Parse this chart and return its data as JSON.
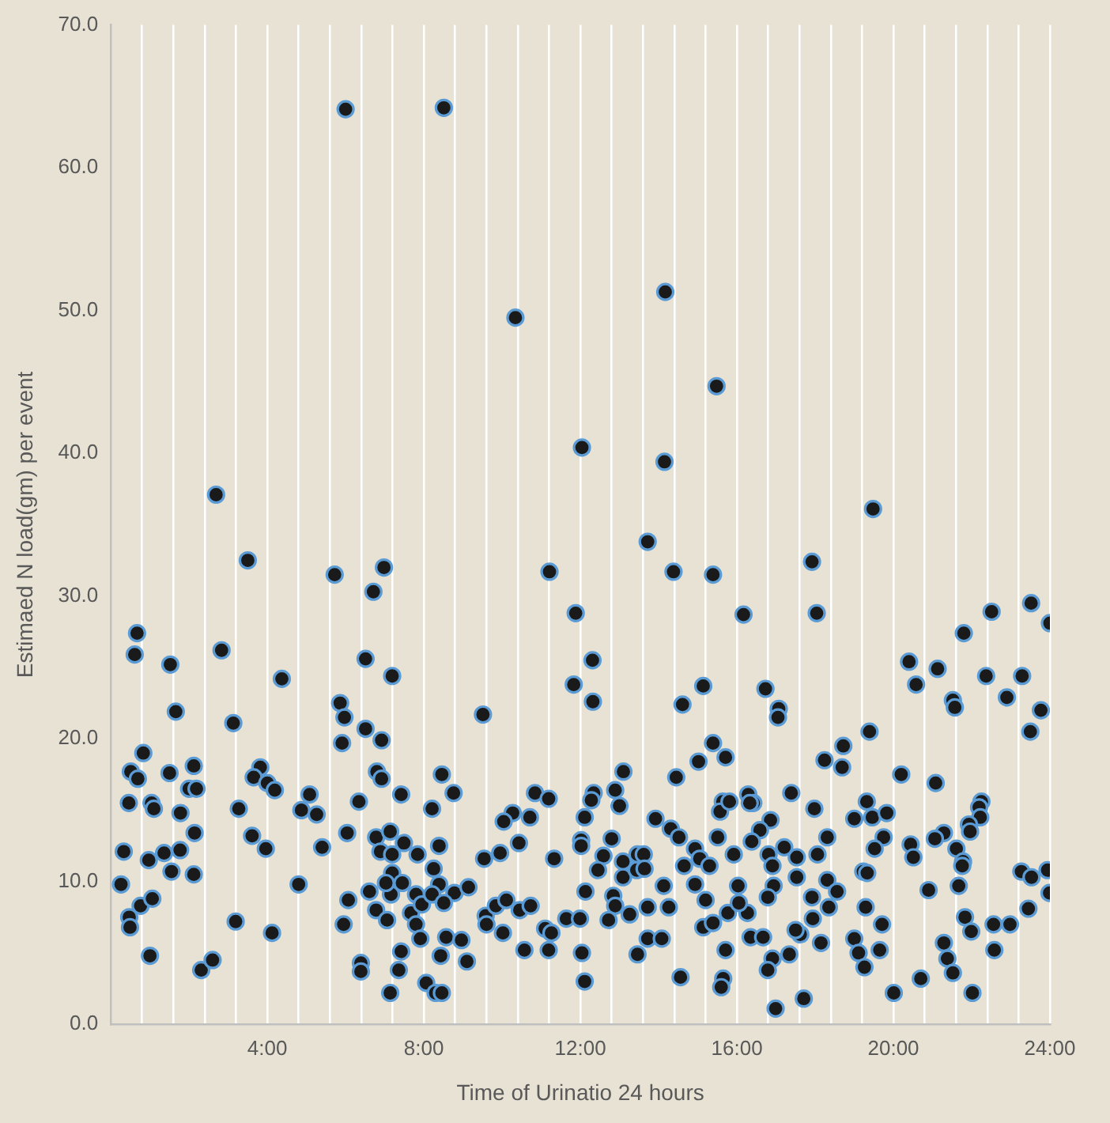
{
  "chart_data": {
    "type": "scatter",
    "xlabel": "Time of Urinatio 24 hours",
    "ylabel": "Estimaed N load(gm) per event",
    "color": "#1a1a1a",
    "marker": "circle",
    "grid": "x",
    "xlim": [
      0,
      24
    ],
    "xticks": [
      {
        "value": 0,
        "label": null
      },
      {
        "value": 0.8,
        "label": null
      },
      {
        "value": 1.6,
        "label": null
      },
      {
        "value": 2.4,
        "label": null
      },
      {
        "value": 3.2,
        "label": null
      },
      {
        "value": 4,
        "label": "4:00"
      },
      {
        "value": 4.8,
        "label": null
      },
      {
        "value": 5.6,
        "label": null
      },
      {
        "value": 6.4,
        "label": null
      },
      {
        "value": 7.2,
        "label": null
      },
      {
        "value": 8,
        "label": "8:00"
      },
      {
        "value": 8.8,
        "label": null
      },
      {
        "value": 9.6,
        "label": null
      },
      {
        "value": 10.4,
        "label": null
      },
      {
        "value": 11.2,
        "label": null
      },
      {
        "value": 12,
        "label": "12:00"
      },
      {
        "value": 12.8,
        "label": null
      },
      {
        "value": 13.6,
        "label": null
      },
      {
        "value": 14.4,
        "label": null
      },
      {
        "value": 15.2,
        "label": null
      },
      {
        "value": 16,
        "label": "16:00"
      },
      {
        "value": 16.8,
        "label": null
      },
      {
        "value": 17.6,
        "label": null
      },
      {
        "value": 18.4,
        "label": null
      },
      {
        "value": 19.2,
        "label": null
      },
      {
        "value": 20,
        "label": "20:00"
      },
      {
        "value": 20.8,
        "label": null
      },
      {
        "value": 21.6,
        "label": null
      },
      {
        "value": 22.4,
        "label": null
      },
      {
        "value": 23.2,
        "label": null
      },
      {
        "value": 24,
        "label": "24:00"
      }
    ],
    "ylim": [
      0,
      70
    ],
    "yticks": [
      {
        "value": 0,
        "label": "0.0"
      },
      {
        "value": 10,
        "label": "10.0"
      },
      {
        "value": 20,
        "label": "20.0"
      },
      {
        "value": 30,
        "label": "30.0"
      },
      {
        "value": 40,
        "label": "40.0"
      },
      {
        "value": 50,
        "label": "50.0"
      },
      {
        "value": 60,
        "label": "60.0"
      },
      {
        "value": 70,
        "label": "70.0"
      }
    ],
    "x": [
      6.0,
      2.69,
      3.5,
      5.72,
      6.98,
      6.71,
      0.67,
      0.61,
      2.83,
      1.52,
      6.51,
      7.19,
      4.37,
      1.66,
      3.13,
      5.86,
      5.97,
      5.91,
      6.51,
      6.92,
      0.83,
      0.51,
      0.69,
      1.5,
      2.12,
      2.0,
      2.19,
      0.46,
      1.04,
      1.1,
      1.78,
      3.82,
      3.65,
      4.0,
      4.19,
      3.27,
      5.08,
      4.87,
      5.26,
      6.34,
      6.8,
      6.92,
      7.42,
      2.14,
      0.33,
      0.97,
      1.36,
      1.77,
      1.55,
      2.12,
      3.61,
      3.96,
      5.4,
      6.04,
      0.26,
      0.76,
      1.06,
      0.47,
      0.49,
      1.0,
      2.31,
      2.6,
      3.19,
      4.12,
      4.8,
      6.07,
      5.95,
      6.78,
      6.89,
      7.14,
      7.49,
      7.84,
      7.19,
      7.19,
      6.61,
      7.16,
      7.03,
      7.45,
      6.78,
      7.06,
      7.8,
      7.67,
      7.95,
      7.8,
      7.91,
      7.42,
      6.39,
      6.39,
      7.36,
      7.14,
      8.06,
      8.51,
      10.34,
      14.17,
      15.48,
      12.04,
      14.15,
      13.72,
      11.21,
      14.38,
      15.39,
      16.17,
      11.88,
      12.31,
      11.83,
      12.32,
      15.14,
      14.61,
      9.51,
      15.39,
      15.71,
      15.02,
      14.45,
      13.1,
      8.46,
      8.76,
      8.21,
      10.84,
      11.19,
      10.27,
      10.04,
      10.71,
      12.34,
      12.28,
      12.11,
      12.89,
      13.0,
      13.92,
      14.31,
      14.52,
      15.51,
      15.64,
      15.57,
      15.81,
      14.93,
      15.05,
      14.65,
      15.3,
      15.92,
      14.93,
      8.39,
      9.54,
      9.95,
      10.43,
      11.33,
      12.02,
      12.02,
      12.8,
      12.59,
      12.45,
      13.09,
      13.09,
      13.46,
      13.62,
      13.44,
      13.64,
      8.25,
      8.39,
      8.21,
      8.78,
      8.51,
      9.14,
      8.57,
      8.96,
      8.43,
      9.1,
      8.3,
      8.46,
      9.58,
      9.6,
      9.84,
      10.11,
      10.02,
      10.45,
      10.73,
      10.57,
      11.1,
      11.26,
      11.19,
      11.64,
      11.99,
      12.04,
      12.11,
      12.13,
      12.84,
      12.89,
      12.72,
      13.26,
      13.72,
      14.26,
      14.13,
      13.72,
      14.08,
      13.46,
      14.56,
      15.2,
      15.14,
      15.39,
      15.77,
      15.71,
      15.65,
      15.6,
      19.48,
      17.92,
      18.04,
      24.0,
      23.52,
      22.51,
      21.8,
      20.4,
      21.13,
      20.58,
      22.37,
      23.29,
      22.9,
      21.52,
      21.57,
      23.77,
      23.5,
      16.73,
      17.07,
      17.05,
      19.39,
      18.72,
      18.24,
      18.69,
      20.2,
      21.08,
      17.39,
      17.98,
      16.29,
      16.42,
      16.33,
      16.86,
      16.59,
      16.38,
      19.32,
      19.0,
      19.46,
      19.83,
      22.25,
      22.19,
      22.22,
      21.93,
      21.96,
      21.29,
      21.06,
      18.31,
      19.75,
      19.52,
      20.44,
      20.51,
      21.61,
      21.78,
      21.76,
      18.06,
      17.53,
      16.81,
      16.91,
      17.21,
      17.53,
      19.23,
      19.33,
      16.03,
      16.94,
      16.79,
      17.92,
      18.31,
      18.56,
      18.35,
      20.9,
      21.67,
      23.27,
      23.53,
      23.94,
      23.99,
      23.45,
      19.29,
      16.27,
      16.05,
      17.94,
      19.71,
      21.83,
      21.99,
      22.56,
      22.98,
      22.58,
      21.29,
      21.38,
      21.52,
      22.02,
      20.7,
      20.01,
      19.0,
      19.11,
      19.26,
      19.65,
      18.15,
      17.62,
      17.5,
      16.35,
      16.67,
      16.91,
      17.34,
      16.79,
      17.71,
      16.99
    ],
    "values": [
      64.1,
      37.1,
      32.5,
      31.5,
      32.0,
      30.3,
      27.4,
      25.9,
      26.2,
      25.2,
      25.6,
      24.4,
      24.2,
      21.9,
      21.1,
      22.5,
      21.5,
      19.7,
      20.7,
      19.9,
      19.0,
      17.7,
      17.2,
      17.6,
      18.1,
      16.5,
      16.5,
      15.5,
      15.5,
      15.1,
      14.8,
      18.0,
      17.3,
      16.9,
      16.4,
      15.1,
      16.1,
      15.0,
      14.7,
      15.6,
      17.7,
      17.2,
      16.1,
      13.4,
      12.1,
      11.5,
      12.0,
      12.2,
      10.7,
      10.5,
      13.2,
      12.3,
      12.4,
      13.4,
      9.8,
      8.3,
      8.8,
      7.5,
      6.8,
      4.8,
      3.8,
      4.5,
      7.2,
      6.4,
      9.8,
      8.7,
      7.0,
      13.1,
      12.1,
      13.5,
      12.7,
      11.9,
      11.9,
      10.6,
      9.3,
      9.1,
      9.9,
      9.9,
      8.0,
      7.3,
      9.1,
      7.8,
      8.4,
      7.0,
      6.0,
      5.1,
      4.3,
      3.7,
      3.8,
      2.2,
      2.9,
      64.2,
      49.5,
      51.3,
      44.7,
      40.4,
      39.4,
      33.8,
      31.7,
      31.7,
      31.5,
      28.7,
      28.8,
      25.5,
      23.8,
      22.6,
      23.7,
      22.4,
      21.7,
      19.7,
      18.7,
      18.4,
      17.3,
      17.7,
      17.5,
      16.2,
      15.1,
      16.2,
      15.8,
      14.8,
      14.2,
      14.5,
      16.2,
      15.7,
      14.5,
      16.4,
      15.3,
      14.4,
      13.7,
      13.1,
      13.1,
      15.6,
      14.9,
      15.6,
      12.3,
      11.6,
      11.1,
      11.1,
      11.9,
      9.8,
      12.5,
      11.6,
      12.0,
      12.7,
      11.6,
      12.9,
      12.5,
      13.0,
      11.8,
      10.8,
      11.4,
      10.3,
      11.9,
      11.9,
      10.8,
      10.9,
      10.9,
      9.8,
      9.1,
      9.2,
      8.5,
      9.6,
      6.1,
      5.9,
      4.8,
      4.4,
      2.2,
      2.2,
      7.6,
      7.0,
      8.3,
      8.7,
      6.4,
      8.0,
      8.3,
      5.2,
      6.7,
      6.4,
      5.2,
      7.4,
      7.4,
      5.0,
      3.0,
      9.3,
      9.0,
      8.3,
      7.3,
      7.7,
      8.2,
      8.2,
      9.7,
      6.0,
      6.0,
      4.9,
      3.3,
      8.7,
      6.8,
      7.1,
      7.8,
      5.2,
      3.2,
      2.6,
      36.1,
      32.4,
      28.8,
      28.1,
      29.5,
      28.9,
      27.4,
      25.4,
      24.9,
      23.8,
      24.4,
      24.4,
      22.9,
      22.7,
      22.2,
      22.0,
      20.5,
      23.5,
      22.1,
      21.5,
      20.5,
      19.5,
      18.5,
      18.0,
      17.5,
      16.9,
      16.2,
      15.1,
      16.1,
      15.5,
      15.5,
      14.3,
      13.6,
      12.8,
      15.6,
      14.4,
      14.5,
      14.8,
      15.6,
      15.2,
      14.5,
      14.0,
      13.5,
      13.4,
      13.0,
      13.1,
      13.1,
      12.3,
      12.6,
      11.7,
      12.3,
      11.4,
      11.1,
      11.9,
      11.7,
      11.9,
      11.1,
      12.4,
      10.3,
      10.7,
      10.6,
      9.7,
      9.7,
      8.9,
      8.9,
      10.1,
      9.3,
      8.2,
      9.4,
      9.7,
      10.7,
      10.3,
      10.8,
      9.2,
      8.1,
      8.2,
      7.8,
      8.5,
      7.4,
      7.0,
      7.5,
      6.5,
      7.0,
      7.0,
      5.2,
      5.7,
      4.6,
      3.6,
      2.2,
      3.2,
      2.2,
      6.0,
      5.0,
      4.0,
      5.2,
      5.7,
      6.3,
      6.6,
      6.1,
      6.1,
      4.6,
      4.9,
      3.8,
      1.8,
      1.1
    ]
  }
}
